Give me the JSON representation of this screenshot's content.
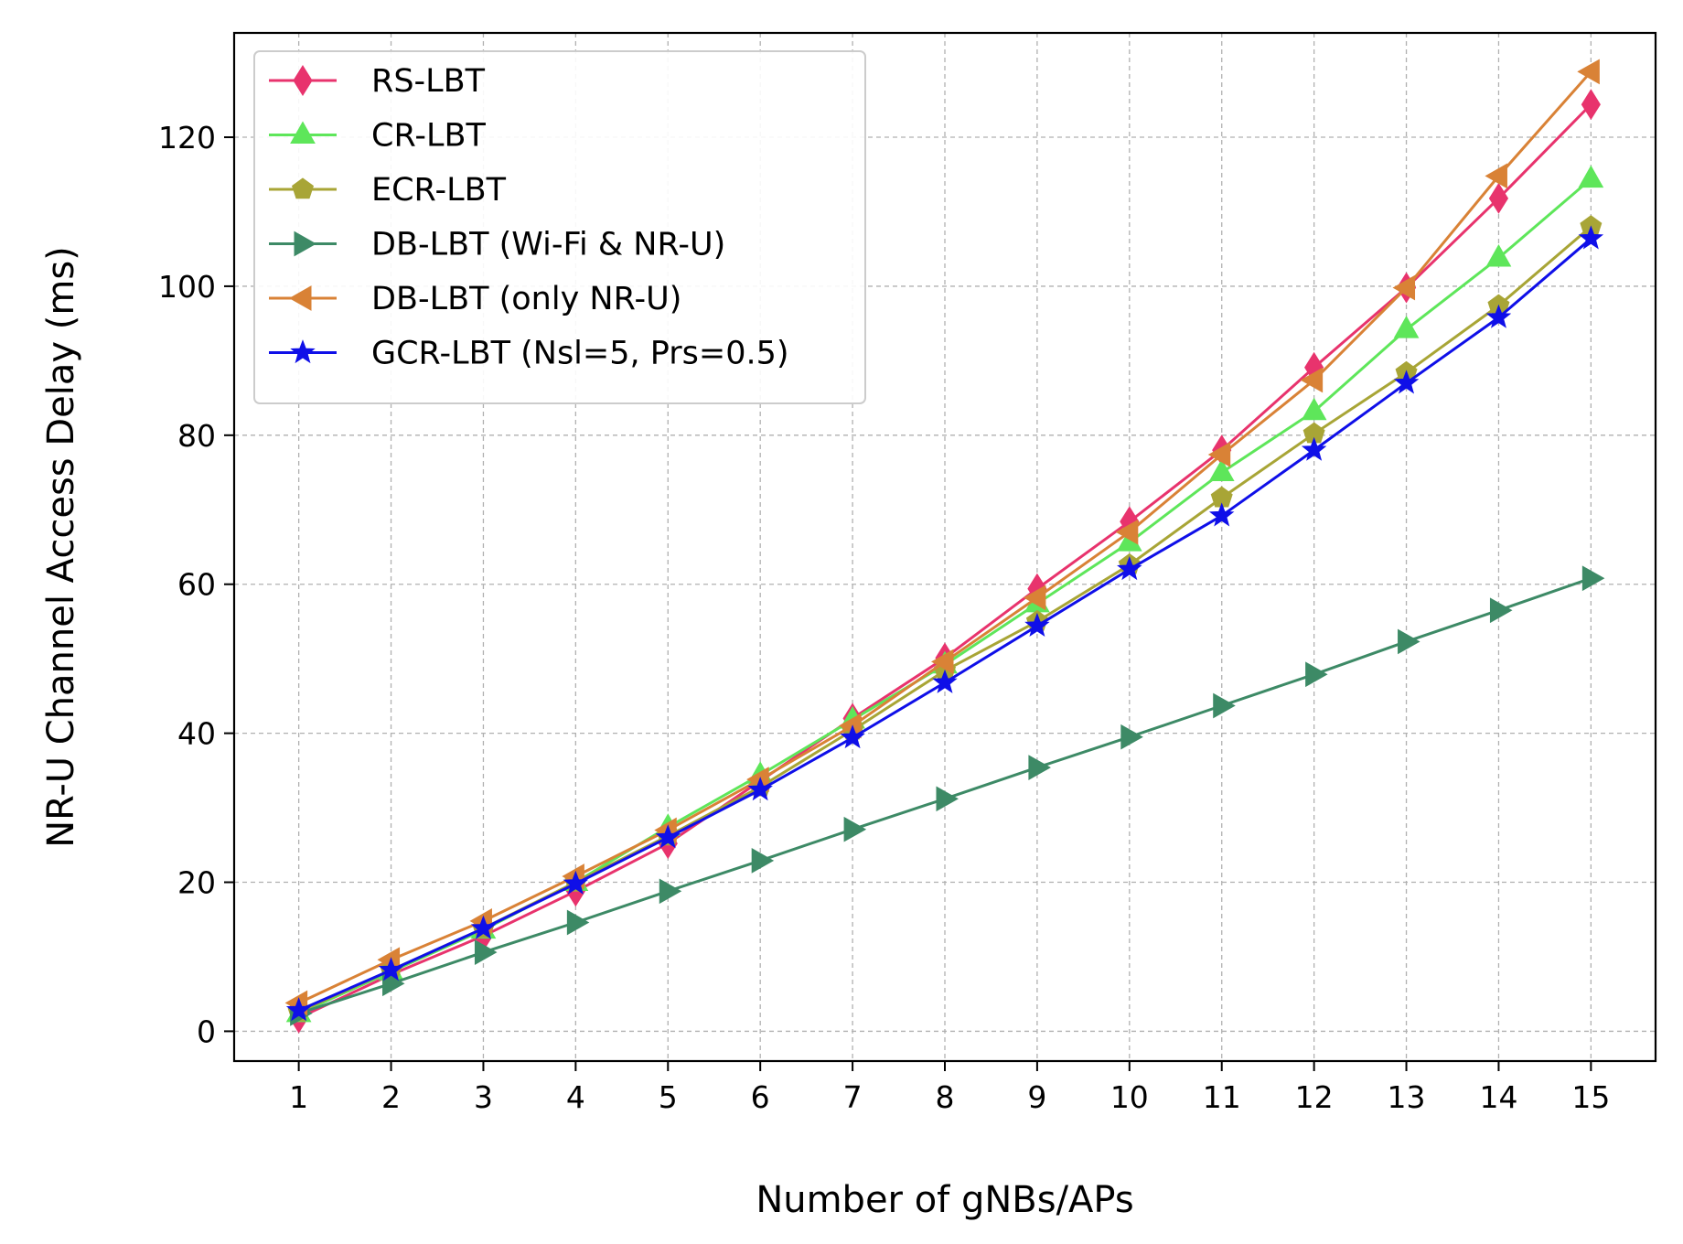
{
  "chart_data": {
    "type": "line",
    "title": "",
    "xlabel": "Number of gNBs/APs",
    "ylabel": "NR-U Channel Access Delay (ms)",
    "x": [
      1,
      2,
      3,
      4,
      5,
      6,
      7,
      8,
      9,
      10,
      11,
      12,
      13,
      14,
      15
    ],
    "xlim": [
      0.3,
      15.7
    ],
    "ylim": [
      -4,
      134
    ],
    "yticks": [
      0,
      20,
      40,
      60,
      80,
      100,
      120
    ],
    "grid": true,
    "legend_position": "top-left",
    "series": [
      {
        "name": "RS-LBT",
        "color": "#e8336d",
        "marker": "diamond",
        "values": [
          1.8,
          7.6,
          12.8,
          18.8,
          25.2,
          33.6,
          42.0,
          50.1,
          59.4,
          68.4,
          78.0,
          89.1,
          99.8,
          111.8,
          124.4
        ]
      },
      {
        "name": "CR-LBT",
        "color": "#5ee65a",
        "marker": "triangle-up",
        "values": [
          2.4,
          8.0,
          13.6,
          20.0,
          27.4,
          34.4,
          41.8,
          49.2,
          57.4,
          65.6,
          75.0,
          83.2,
          94.2,
          103.8,
          114.4
        ]
      },
      {
        "name": "ECR-LBT",
        "color": "#a8a536",
        "marker": "pentagon",
        "values": [
          2.6,
          8.2,
          13.8,
          20.0,
          26.2,
          32.8,
          40.4,
          48.4,
          55.0,
          62.6,
          71.6,
          80.2,
          88.4,
          97.4,
          108.0
        ]
      },
      {
        "name": "DB-LBT (Wi-Fi & NR-U)",
        "color": "#3d8a66",
        "marker": "triangle-right",
        "values": [
          2.4,
          6.4,
          10.6,
          14.6,
          18.8,
          22.9,
          27.1,
          31.2,
          35.4,
          39.5,
          43.7,
          47.9,
          52.3,
          56.5,
          60.8
        ]
      },
      {
        "name": "DB-LBT (only NR-U)",
        "color": "#d98236",
        "marker": "triangle-left",
        "values": [
          3.8,
          9.6,
          14.8,
          20.8,
          27.0,
          33.8,
          41.0,
          49.6,
          58.2,
          67.0,
          77.4,
          87.4,
          99.8,
          114.8,
          128.8
        ]
      },
      {
        "name": "GCR-LBT (Nsl=5, Prs=0.5)",
        "color": "#0f0fe8",
        "marker": "star",
        "values": [
          2.8,
          8.2,
          13.8,
          19.8,
          26.0,
          32.4,
          39.4,
          46.8,
          54.4,
          62.0,
          69.2,
          78.0,
          87.0,
          95.8,
          106.4
        ]
      }
    ]
  }
}
